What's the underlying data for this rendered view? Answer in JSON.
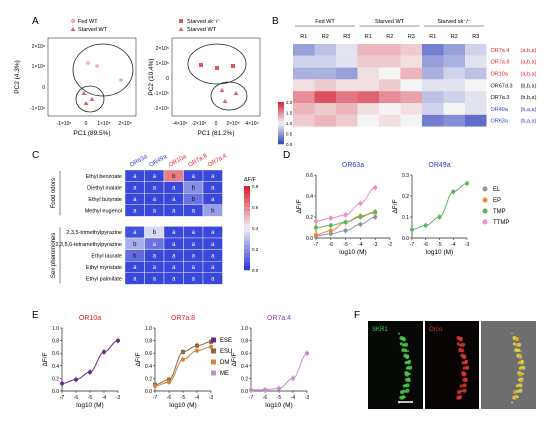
{
  "panels": {
    "A": "A",
    "B": "B",
    "C": "C",
    "D": "D",
    "E": "E",
    "F": "F"
  },
  "colors": {
    "fed": "#f2a7b3",
    "starved": "#e06070",
    "starved_sk": "#e05560",
    "red_label": "#e0202a",
    "blue_label": "#2b3ec8",
    "purple_label": "#8a3bb5",
    "heat_low": "#3b4cc0",
    "heat_mid": "#f4f4f4",
    "heat_high": "#d8263a",
    "EL": "#8a96a8",
    "EP": "#ef8a2e",
    "TMP": "#5fb55f",
    "TTMP": "#ef8bc9",
    "ESE": "#6a2a8a",
    "ESU": "#8a6a3a",
    "DM": "#d8823a",
    "ME": "#c88ad0"
  },
  "pca1": {
    "legend": [
      "Fed WT",
      "Starved WT"
    ],
    "xlabel": "PC1 (89.5%)",
    "ylabel": "PC2 (4.3%)",
    "xticks": [
      "-1×10⁵",
      "0",
      "1×10⁵",
      "2×10⁵"
    ],
    "yticks": [
      "2×10⁵",
      "1×10⁵",
      "0",
      "-1×10⁵"
    ]
  },
  "pca2": {
    "legend": [
      "Starved sk⁻/⁻",
      "Starved WT"
    ],
    "xlabel": "PC1 (81.2%)",
    "ylabel": "PC2 (10.4%)",
    "xticks": [
      "-4×10⁵",
      "-2×10⁵",
      "0",
      "2×10⁵",
      "4×10⁵"
    ],
    "yticks": [
      "2×10⁵",
      "1×10⁵",
      "0",
      "-1×10⁵",
      "-2×10⁵"
    ]
  },
  "heatmapB": {
    "groups": [
      "Fed WT",
      "Starved WT",
      "Starved sk⁻/⁻"
    ],
    "columns": [
      "R1",
      "R2",
      "R3",
      "R1",
      "R2",
      "R3",
      "R1",
      "R2",
      "R3"
    ],
    "rows": [
      {
        "label": "OR7a.4",
        "sig": "(a,b,a)",
        "color": "red",
        "values": [
          0.5,
          0.7,
          0.9,
          1.3,
          1.3,
          1.2,
          0.3,
          0.5,
          0.8
        ]
      },
      {
        "label": "OR7a.8",
        "sig": "(a,b,a)",
        "color": "red",
        "values": [
          0.8,
          0.8,
          0.9,
          1.2,
          1.2,
          1.1,
          0.5,
          0.6,
          0.9
        ]
      },
      {
        "label": "OR10a",
        "sig": "(a,b,a)",
        "color": "red",
        "values": [
          0.6,
          0.6,
          0.5,
          1.1,
          1.0,
          1.3,
          0.6,
          0.8,
          0.7
        ]
      },
      {
        "label": "OR67d.3",
        "sig": "(b,b,a)",
        "color": "black",
        "values": [
          1.1,
          1.2,
          1.1,
          1.1,
          1.2,
          1.0,
          0.9,
          0.9,
          1.0
        ]
      },
      {
        "label": "OR7a.3",
        "sig": "(b,b,a)",
        "color": "black",
        "values": [
          1.5,
          1.8,
          1.6,
          1.7,
          1.5,
          1.4,
          0.7,
          0.8,
          0.9
        ]
      },
      {
        "label": "OR49a",
        "sig": "(b,a,a)",
        "color": "blue",
        "values": [
          1.3,
          1.2,
          1.3,
          1.1,
          1.0,
          1.1,
          0.8,
          1.0,
          0.9
        ]
      },
      {
        "label": "OR63a",
        "sig": "(b,a,a)",
        "color": "blue",
        "values": [
          1.2,
          1.3,
          1.2,
          1.0,
          1.1,
          1.0,
          0.3,
          0.4,
          0.2
        ]
      }
    ],
    "scale": [
      "2.0",
      "1.5",
      "1.0",
      "0.5",
      "0.0"
    ]
  },
  "heatmapC": {
    "columns": [
      "OR63a",
      "OR49a",
      "OR10a",
      "OR7a.8",
      "OR7a.4"
    ],
    "column_colors": [
      "blue",
      "blue",
      "red",
      "red",
      "red"
    ],
    "group_food": "Food odors",
    "group_sex": "Sex pheromones",
    "rows": [
      {
        "label": "Ethyl benzoate",
        "values": [
          0.02,
          0.02,
          0.62,
          0.02,
          0.02
        ],
        "letters": [
          "a",
          "a",
          "b",
          "a",
          "a"
        ]
      },
      {
        "label": "Diethyl malate",
        "values": [
          0.02,
          0.02,
          0.02,
          0.18,
          0.02
        ],
        "letters": [
          "a",
          "a",
          "a",
          "b",
          "a"
        ]
      },
      {
        "label": "Ethyl butyrate",
        "values": [
          0.02,
          0.02,
          0.02,
          0.12,
          0.02
        ],
        "letters": [
          "a",
          "a",
          "a",
          "b",
          "a"
        ]
      },
      {
        "label": "Methyl eugenol",
        "values": [
          0.02,
          0.02,
          0.02,
          0.02,
          0.22
        ],
        "letters": [
          "a",
          "a",
          "a",
          "a",
          "b"
        ]
      },
      {
        "label": "2,3,5-trimethylpyrazine",
        "values": [
          0.04,
          0.35,
          0.02,
          0.02,
          0.02
        ],
        "letters": [
          "a",
          "b",
          "a",
          "a",
          "a"
        ]
      },
      {
        "label": "2,3,5,6-tetramethylpyrazine",
        "values": [
          0.25,
          0.12,
          0.02,
          0.02,
          0.02
        ],
        "letters": [
          "b",
          "a",
          "a",
          "a",
          "a"
        ]
      },
      {
        "label": "Ethyl laurate",
        "values": [
          0.1,
          0.02,
          0.02,
          0.02,
          0.02
        ],
        "letters": [
          "b",
          "a",
          "a",
          "a",
          "a"
        ]
      },
      {
        "label": "Ethyl myristate",
        "values": [
          0.02,
          0.02,
          0.02,
          0.02,
          0.02
        ],
        "letters": [
          "a",
          "a",
          "a",
          "a",
          "a"
        ]
      },
      {
        "label": "Ethyl palmitate",
        "values": [
          0.02,
          0.02,
          0.02,
          0.02,
          0.02
        ],
        "letters": [
          "a",
          "a",
          "a",
          "a",
          "a"
        ]
      }
    ],
    "scale_title": "ΔF/F",
    "scale": [
      "0.8",
      "0.6",
      "0.4",
      "0.2",
      "0.0"
    ]
  },
  "chart_data": [
    {
      "type": "line",
      "title": "OR63a",
      "xlabel": "log10 (M)",
      "ylabel": "ΔF/F",
      "xlim": [
        -7,
        -2
      ],
      "ylim": [
        0,
        0.6
      ],
      "xticks": [
        "-7",
        "-6",
        "-5",
        "-4",
        "-3",
        "-2"
      ],
      "yticks": [
        "0.0",
        "0.2",
        "0.4",
        "0.6"
      ],
      "series": [
        {
          "name": "EL",
          "values": [
            [
              -7,
              0.02
            ],
            [
              -6,
              0.04
            ],
            [
              -5,
              0.07
            ],
            [
              -4,
              0.13
            ],
            [
              -3,
              0.2
            ]
          ]
        },
        {
          "name": "EP",
          "values": [
            [
              -7,
              0.03
            ],
            [
              -6,
              0.07
            ],
            [
              -5,
              0.15
            ],
            [
              -4,
              0.21
            ],
            [
              -3,
              0.24
            ]
          ]
        },
        {
          "name": "TMP",
          "values": [
            [
              -7,
              0.1
            ],
            [
              -6,
              0.12
            ],
            [
              -5,
              0.15
            ],
            [
              -4,
              0.2
            ],
            [
              -3,
              0.25
            ]
          ]
        },
        {
          "name": "TTMP",
          "values": [
            [
              -7,
              0.16
            ],
            [
              -6,
              0.19
            ],
            [
              -5,
              0.22
            ],
            [
              -4,
              0.33
            ],
            [
              -3,
              0.48
            ]
          ]
        }
      ]
    },
    {
      "type": "line",
      "title": "OR49a",
      "xlabel": "log10 (M)",
      "ylabel": "ΔF/F",
      "xlim": [
        -7,
        -3
      ],
      "ylim": [
        0,
        0.3
      ],
      "xticks": [
        "-7",
        "-6",
        "-5",
        "-4",
        "-3"
      ],
      "yticks": [
        "0.0",
        "0.1",
        "0.2",
        "0.3"
      ],
      "series": [
        {
          "name": "TMP",
          "values": [
            [
              -7,
              0.04
            ],
            [
              -6,
              0.06
            ],
            [
              -5,
              0.1
            ],
            [
              -4,
              0.22
            ],
            [
              -3,
              0.26
            ]
          ]
        }
      ]
    },
    {
      "type": "line",
      "title": "OR10a",
      "xlabel": "log10 (M)",
      "ylabel": "ΔF/F",
      "xlim": [
        -7,
        -3
      ],
      "ylim": [
        0,
        1
      ],
      "xticks": [
        "-7",
        "-6",
        "-5",
        "-4",
        "-3"
      ],
      "yticks": [
        "0.0",
        "0.2",
        "0.4",
        "0.6",
        "0.8",
        "1.0"
      ],
      "series": [
        {
          "name": "ESE",
          "values": [
            [
              -7,
              0.12
            ],
            [
              -6,
              0.18
            ],
            [
              -5,
              0.3
            ],
            [
              -4,
              0.62
            ],
            [
              -3,
              0.8
            ]
          ]
        }
      ]
    },
    {
      "type": "line",
      "title": "OR7a.8",
      "xlabel": "log10 (M)",
      "ylabel": "ΔF/F",
      "xlim": [
        -7,
        -3
      ],
      "ylim": [
        0,
        1
      ],
      "xticks": [
        "-7",
        "-6",
        "-5",
        "-4",
        "-3"
      ],
      "yticks": [
        "0.0",
        "0.2",
        "0.4",
        "0.6",
        "0.8",
        "1.0"
      ],
      "series": [
        {
          "name": "ESU",
          "values": [
            [
              -7,
              0.1
            ],
            [
              -6,
              0.18
            ],
            [
              -5,
              0.62
            ],
            [
              -4,
              0.72
            ],
            [
              -3,
              0.78
            ]
          ]
        },
        {
          "name": "DM",
          "values": [
            [
              -7,
              0.08
            ],
            [
              -6,
              0.14
            ],
            [
              -5,
              0.5
            ],
            [
              -4,
              0.64
            ],
            [
              -3,
              0.7
            ]
          ]
        }
      ]
    },
    {
      "type": "line",
      "title": "OR7a.4",
      "xlabel": "log10 (M)",
      "ylabel": "ΔF/F",
      "xlim": [
        -7,
        -3
      ],
      "ylim": [
        0,
        1
      ],
      "xticks": [
        "-7",
        "-6",
        "-5",
        "-4",
        "-3"
      ],
      "yticks": [
        "0.0",
        "0.2",
        "0.4",
        "0.6",
        "0.8",
        "1.0"
      ],
      "series": [
        {
          "name": "ME",
          "values": [
            [
              -7,
              0.02
            ],
            [
              -6,
              0.02
            ],
            [
              -5,
              0.04
            ],
            [
              -4,
              0.2
            ],
            [
              -3,
              0.6
            ]
          ]
        }
      ]
    }
  ],
  "legendD": [
    "EL",
    "EP",
    "TMP",
    "TTMP"
  ],
  "legendE": [
    "ESE",
    "ESU",
    "DM",
    "ME"
  ],
  "panelF": {
    "label1": "SKR1",
    "label2": "Orco"
  }
}
